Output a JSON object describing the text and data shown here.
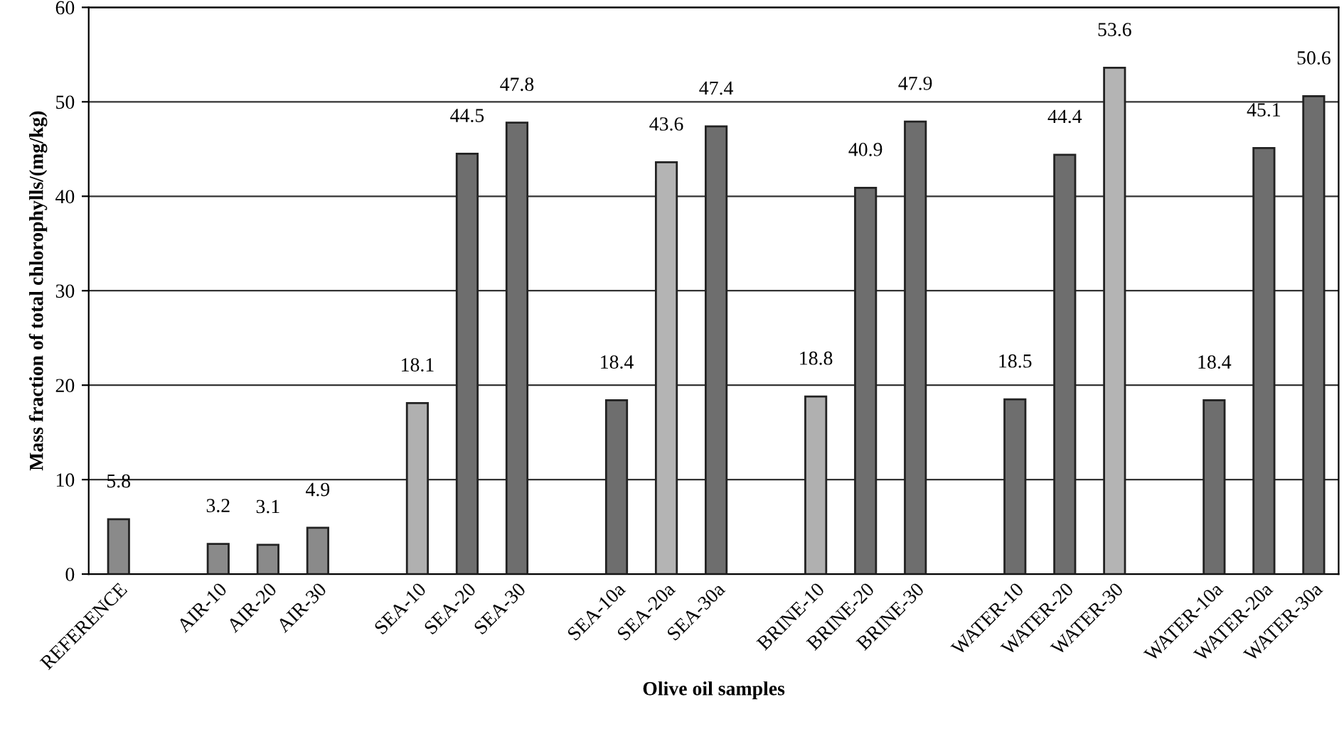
{
  "chart_data": {
    "type": "bar",
    "xlabel": "Olive oil samples",
    "ylabel": "Mass fraction of total chlorophylls/(mg/kg)",
    "categories": [
      "REFERENCE",
      null,
      "AIR-10",
      "AIR-20",
      "AIR-30",
      null,
      "SEA-10",
      "SEA-20",
      "SEA-30",
      null,
      "SEA-10a",
      "SEA-20a",
      "SEA-30a",
      null,
      "BRINE-10",
      "BRINE-20",
      "BRINE-30",
      null,
      "WATER-10",
      "WATER-20",
      "WATER-30",
      null,
      "WATER-10a",
      "WATER-20a",
      "WATER-30a"
    ],
    "values": [
      5.8,
      null,
      3.2,
      3.1,
      4.9,
      null,
      18.1,
      44.5,
      47.8,
      null,
      18.4,
      43.6,
      47.4,
      null,
      18.8,
      40.9,
      47.9,
      null,
      18.5,
      44.4,
      53.6,
      null,
      18.4,
      45.1,
      50.6
    ],
    "colors": [
      "#8a8a8a",
      null,
      "#8a8a8a",
      "#8a8a8a",
      "#8a8a8a",
      null,
      "#b0b0b0",
      "#6e6e6e",
      "#6e6e6e",
      null,
      "#6e6e6e",
      "#b4b4b4",
      "#6e6e6e",
      null,
      "#b0b0b0",
      "#6e6e6e",
      "#6e6e6e",
      null,
      "#6e6e6e",
      "#6e6e6e",
      "#b4b4b4",
      null,
      "#6e6e6e",
      "#6e6e6e",
      "#6e6e6e"
    ],
    "ylim": [
      0,
      60
    ],
    "yticks": [
      0,
      10,
      20,
      30,
      40,
      50,
      60
    ],
    "grid": "y",
    "data_labels": true
  }
}
